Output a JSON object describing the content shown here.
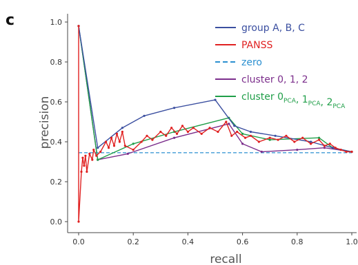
{
  "panel_label": "c",
  "chart_data": {
    "type": "line",
    "xlabel": "recall",
    "ylabel": "precision",
    "xlim": [
      0,
      1.0
    ],
    "ylim": [
      0,
      1.0
    ],
    "x_ticks": [
      "0.0",
      "0.2",
      "0.4",
      "0.6",
      "0.8",
      "1.0"
    ],
    "y_ticks": [
      "0.0",
      "0.2",
      "0.4",
      "0.6",
      "0.8",
      "1.0"
    ],
    "grid": false,
    "legend_position": "top-right",
    "series": [
      {
        "name": "group A, B, C",
        "color": "#3b4fa0",
        "style": "solid",
        "x": [
          0.0,
          0.07,
          0.16,
          0.24,
          0.35,
          0.5,
          0.57,
          0.63,
          0.72,
          0.85,
          0.93,
          1.0
        ],
        "y": [
          0.98,
          0.37,
          0.47,
          0.53,
          0.57,
          0.61,
          0.48,
          0.45,
          0.43,
          0.4,
          0.37,
          0.35
        ]
      },
      {
        "name": "PANSS",
        "color": "#e02020",
        "style": "solid",
        "x": [
          0.0,
          0.0,
          0.01,
          0.015,
          0.02,
          0.025,
          0.03,
          0.04,
          0.05,
          0.055,
          0.065,
          0.08,
          0.1,
          0.11,
          0.12,
          0.13,
          0.14,
          0.15,
          0.16,
          0.17,
          0.2,
          0.23,
          0.25,
          0.27,
          0.3,
          0.32,
          0.34,
          0.36,
          0.38,
          0.4,
          0.42,
          0.45,
          0.48,
          0.51,
          0.54,
          0.56,
          0.58,
          0.61,
          0.63,
          0.66,
          0.7,
          0.73,
          0.76,
          0.79,
          0.82,
          0.85,
          0.88,
          0.9,
          0.92,
          0.94,
          0.96,
          0.98,
          1.0
        ],
        "y": [
          0.98,
          0.0,
          0.25,
          0.32,
          0.28,
          0.33,
          0.25,
          0.34,
          0.31,
          0.36,
          0.33,
          0.35,
          0.4,
          0.37,
          0.42,
          0.38,
          0.44,
          0.4,
          0.45,
          0.38,
          0.36,
          0.4,
          0.43,
          0.41,
          0.45,
          0.43,
          0.47,
          0.44,
          0.48,
          0.45,
          0.47,
          0.44,
          0.47,
          0.45,
          0.5,
          0.43,
          0.45,
          0.42,
          0.43,
          0.4,
          0.42,
          0.41,
          0.43,
          0.4,
          0.42,
          0.39,
          0.41,
          0.38,
          0.39,
          0.37,
          0.36,
          0.35,
          0.35
        ]
      },
      {
        "name": "zero",
        "color": "#2a8fd0",
        "style": "dashed",
        "x": [
          0.0,
          1.0
        ],
        "y": [
          0.345,
          0.345
        ]
      },
      {
        "name": "cluster 0, 1, 2",
        "color": "#7b2d8b",
        "style": "solid",
        "x": [
          0.0,
          0.07,
          0.18,
          0.35,
          0.55,
          0.6,
          0.67,
          0.8,
          0.9,
          1.0
        ],
        "y": [
          0.98,
          0.31,
          0.34,
          0.42,
          0.49,
          0.39,
          0.35,
          0.36,
          0.37,
          0.35
        ]
      },
      {
        "name": "cluster 0",
        "name_sub": "PCA",
        "name_parts": [
          {
            "text": "cluster 0",
            "sub": "PCA"
          },
          {
            "text": ", 1",
            "sub": "PCA"
          },
          {
            "text": ", 2",
            "sub": "PCA"
          }
        ],
        "color": "#1f9e48",
        "style": "solid",
        "x": [
          0.0,
          0.07,
          0.2,
          0.35,
          0.55,
          0.6,
          0.7,
          0.88,
          0.93,
          1.0
        ],
        "y": [
          0.98,
          0.31,
          0.39,
          0.45,
          0.52,
          0.44,
          0.41,
          0.42,
          0.37,
          0.35
        ]
      }
    ]
  }
}
